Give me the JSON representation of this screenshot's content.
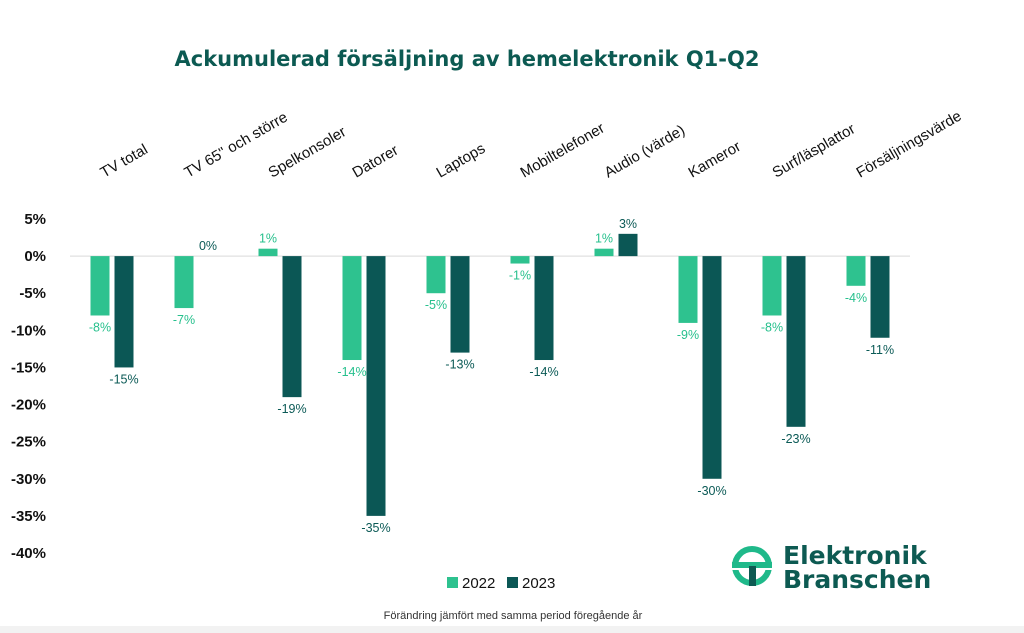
{
  "chart_data": {
    "type": "bar",
    "title": "Ackumulerad försäljning av hemelektronik Q1-Q2",
    "categories": [
      "TV total",
      "TV 65\" och större",
      "Spelkonsoler",
      "Datorer",
      "Laptops",
      "Mobiltelefoner",
      "Audio (värde)",
      "Kameror",
      "Surf/läsplattor",
      "Försäljningsvärde"
    ],
    "series": [
      {
        "name": "2022",
        "values": [
          -8,
          -7,
          1,
          -14,
          -5,
          -1,
          1,
          -9,
          -8,
          -4
        ],
        "color": "#2ec28f",
        "labels": [
          "-8%",
          "-7%",
          "1%",
          "-14%",
          "-5%",
          "-1%",
          "1%",
          "-9%",
          "-8%",
          "-4%"
        ]
      },
      {
        "name": "2023",
        "values": [
          -15,
          0,
          -19,
          -35,
          -13,
          -14,
          3,
          -30,
          -23,
          -11
        ],
        "color": "#0b5755",
        "labels": [
          "-15%",
          "0%",
          "-19%",
          "-35%",
          "-13%",
          "-14%",
          "3%",
          "-30%",
          "-23%",
          "-11%"
        ]
      }
    ],
    "ylim": [
      -40,
      5
    ],
    "yticks": [
      5,
      0,
      -5,
      -10,
      -15,
      -20,
      -25,
      -30,
      -35,
      -40
    ],
    "ytick_labels": [
      "5%",
      "0%",
      "-5%",
      "-10%",
      "-15%",
      "-20%",
      "-25%",
      "-30%",
      "-35%",
      "-40%"
    ],
    "legend": "bottom-center",
    "footnote": "Förändring jämfört med samma period föregående år"
  },
  "logo": {
    "line1": "Elektronik",
    "line2": "Branschen"
  }
}
